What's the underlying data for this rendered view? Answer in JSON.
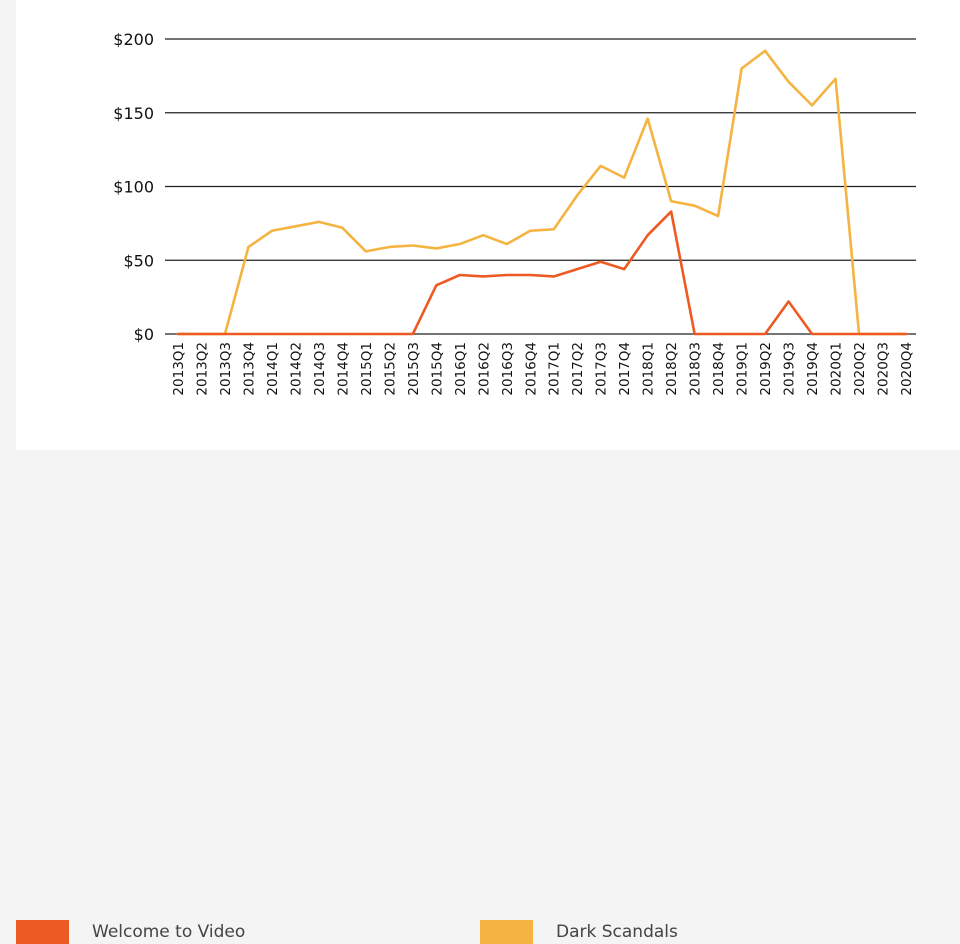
{
  "chart_data": {
    "type": "line",
    "title": "",
    "xlabel": "",
    "ylabel": "",
    "categories": [
      "2013Q1",
      "2013Q2",
      "2013Q3",
      "2013Q4",
      "2014Q1",
      "2014Q2",
      "2014Q3",
      "2014Q4",
      "2015Q1",
      "2015Q2",
      "2015Q3",
      "2015Q4",
      "2016Q1",
      "2016Q2",
      "2016Q3",
      "2016Q4",
      "2017Q1",
      "2017Q2",
      "2017Q3",
      "2017Q4",
      "2018Q1",
      "2018Q2",
      "2018Q3",
      "2018Q4",
      "2019Q1",
      "2019Q2",
      "2019Q3",
      "2019Q4",
      "2020Q1",
      "2020Q2",
      "2020Q3",
      "2020Q4"
    ],
    "ylim": [
      0,
      200
    ],
    "yticks": [
      0,
      50,
      100,
      150,
      200
    ],
    "ytick_labels": [
      "$0",
      "$50",
      "$100",
      "$150",
      "$200"
    ],
    "grid": "horizontal",
    "legend_position": "bottom",
    "series": [
      {
        "name": "Welcome to Video",
        "color": "#ee5a24",
        "values": [
          0,
          0,
          0,
          0,
          0,
          0,
          0,
          0,
          0,
          0,
          0,
          33,
          40,
          39,
          40,
          40,
          39,
          44,
          49,
          44,
          67,
          83,
          0,
          0,
          0,
          0,
          22,
          0,
          0,
          0,
          0,
          0
        ]
      },
      {
        "name": "Dark Scandals",
        "color": "#f5b342",
        "values": [
          0,
          0,
          0,
          59,
          70,
          73,
          76,
          72,
          56,
          59,
          60,
          58,
          61,
          67,
          61,
          70,
          71,
          94,
          114,
          106,
          146,
          90,
          87,
          80,
          180,
          192,
          171,
          155,
          173,
          0,
          0,
          0
        ]
      }
    ]
  }
}
